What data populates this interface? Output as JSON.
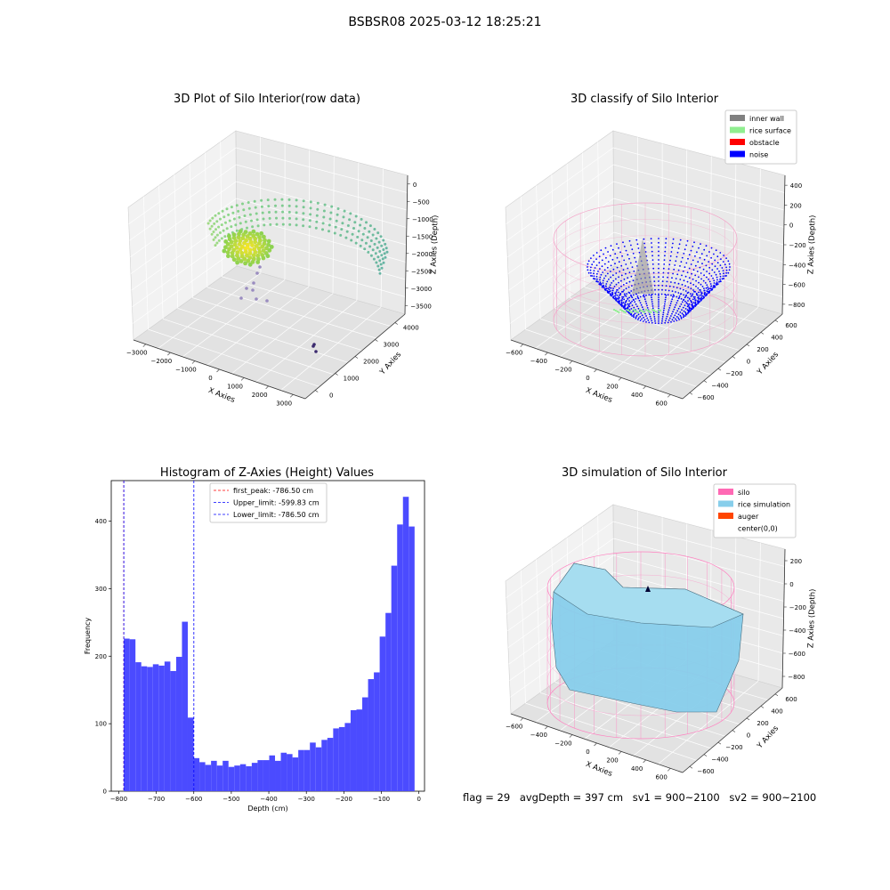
{
  "suptitle": "BSBSR08 2025-03-12 18:25:21",
  "status": {
    "flag": "flag = 29",
    "avg_depth": "avgDepth = 397 cm",
    "sv1": "sv1 = 900~2100",
    "sv2": "sv2 = 900~2100"
  },
  "colors": {
    "inner_wall": "#808080",
    "rice_surface": "#90ee90",
    "obstacle": "#ff0000",
    "noise": "#0000ff",
    "silo": "#ff69b4",
    "rice_simulation": "#87ceeb",
    "auger": "#ff4500",
    "histogram_bar": "#4b4bff"
  },
  "chart_data": [
    {
      "type": "scatter",
      "projection": "3d",
      "title": "3D Plot of Silo Interior(row data)",
      "xlabel": "X Axies",
      "ylabel": "Y Axies",
      "zlabel": "Z Axies (Depth)",
      "x_ticks": [
        "−3000",
        "−2000",
        "−1000",
        "0",
        "1000",
        "2000",
        "3000"
      ],
      "y_ticks": [
        "0",
        "1000",
        "2000",
        "3000",
        "4000"
      ],
      "z_ticks": [
        "0",
        "−500",
        "−1000",
        "−1500",
        "−2000",
        "−2500",
        "−3000",
        "−3500"
      ],
      "colormap": "viridis"
    },
    {
      "type": "scatter",
      "projection": "3d",
      "title": "3D classify of Silo Interior",
      "xlabel": "X Axies",
      "ylabel": "Y Axies",
      "zlabel": "Z Axies (Depth)",
      "x_ticks": [
        "−600",
        "−400",
        "−200",
        "0",
        "200",
        "400",
        "600"
      ],
      "y_ticks": [
        "−600",
        "−400",
        "−200",
        "0",
        "200",
        "400",
        "600"
      ],
      "z_ticks": [
        "400",
        "200",
        "0",
        "−200",
        "−400",
        "−600",
        "−800"
      ],
      "legend": [
        "inner wall",
        "rice surface",
        "obstacle",
        "noise"
      ],
      "legend_position": "top-right"
    },
    {
      "type": "bar",
      "subtype": "histogram",
      "title": "Histogram of Z-Axies (Height) Values",
      "xlabel": "Depth (cm)",
      "ylabel": "Frequency",
      "xlim": [
        -820,
        15
      ],
      "ylim": [
        0,
        460
      ],
      "x_ticks": [
        "−800",
        "−700",
        "−600",
        "−500",
        "−400",
        "−300",
        "−200",
        "−100",
        "0"
      ],
      "x_tick_values": [
        -800,
        -700,
        -600,
        -500,
        -400,
        -300,
        -200,
        -100,
        0
      ],
      "y_ticks": [
        "0",
        "100",
        "200",
        "300",
        "400"
      ],
      "y_tick_values": [
        0,
        100,
        200,
        300,
        400
      ],
      "bin_start": -786.5,
      "bin_width": 15.5,
      "values": [
        226,
        225,
        191,
        185,
        184,
        188,
        186,
        192,
        178,
        199,
        251,
        109,
        49,
        43,
        39,
        45,
        38,
        45,
        36,
        38,
        40,
        37,
        42,
        46,
        46,
        53,
        45,
        57,
        55,
        50,
        61,
        61,
        72,
        65,
        76,
        79,
        93,
        95,
        101,
        120,
        121,
        139,
        166,
        176,
        229,
        264,
        334,
        395,
        436,
        392
      ],
      "lines": [
        {
          "label": "first_peak: -786.50 cm",
          "x": -786.5,
          "color": "#ff0000"
        },
        {
          "label": "Upper_limit: -599.83 cm",
          "x": -599.83,
          "color": "#0000ff"
        },
        {
          "label": "Lower_limit: -786.50 cm",
          "x": -786.5,
          "color": "#0000ff"
        }
      ],
      "legend_position": "top-center"
    },
    {
      "type": "area",
      "projection": "3d",
      "title": "3D simulation of Silo Interior",
      "xlabel": "X Axies",
      "ylabel": "Y Axies",
      "zlabel": "Z Axies (Depth)",
      "x_ticks": [
        "−600",
        "−400",
        "−200",
        "0",
        "200",
        "400",
        "600"
      ],
      "y_ticks": [
        "−600",
        "−400",
        "−200",
        "0",
        "200",
        "400",
        "600"
      ],
      "z_ticks": [
        "200",
        "0",
        "−200",
        "−400",
        "−600",
        "−800"
      ],
      "legend": [
        "silo",
        "rice simulation",
        "auger",
        "center(0,0)"
      ],
      "legend_position": "top-right"
    }
  ]
}
